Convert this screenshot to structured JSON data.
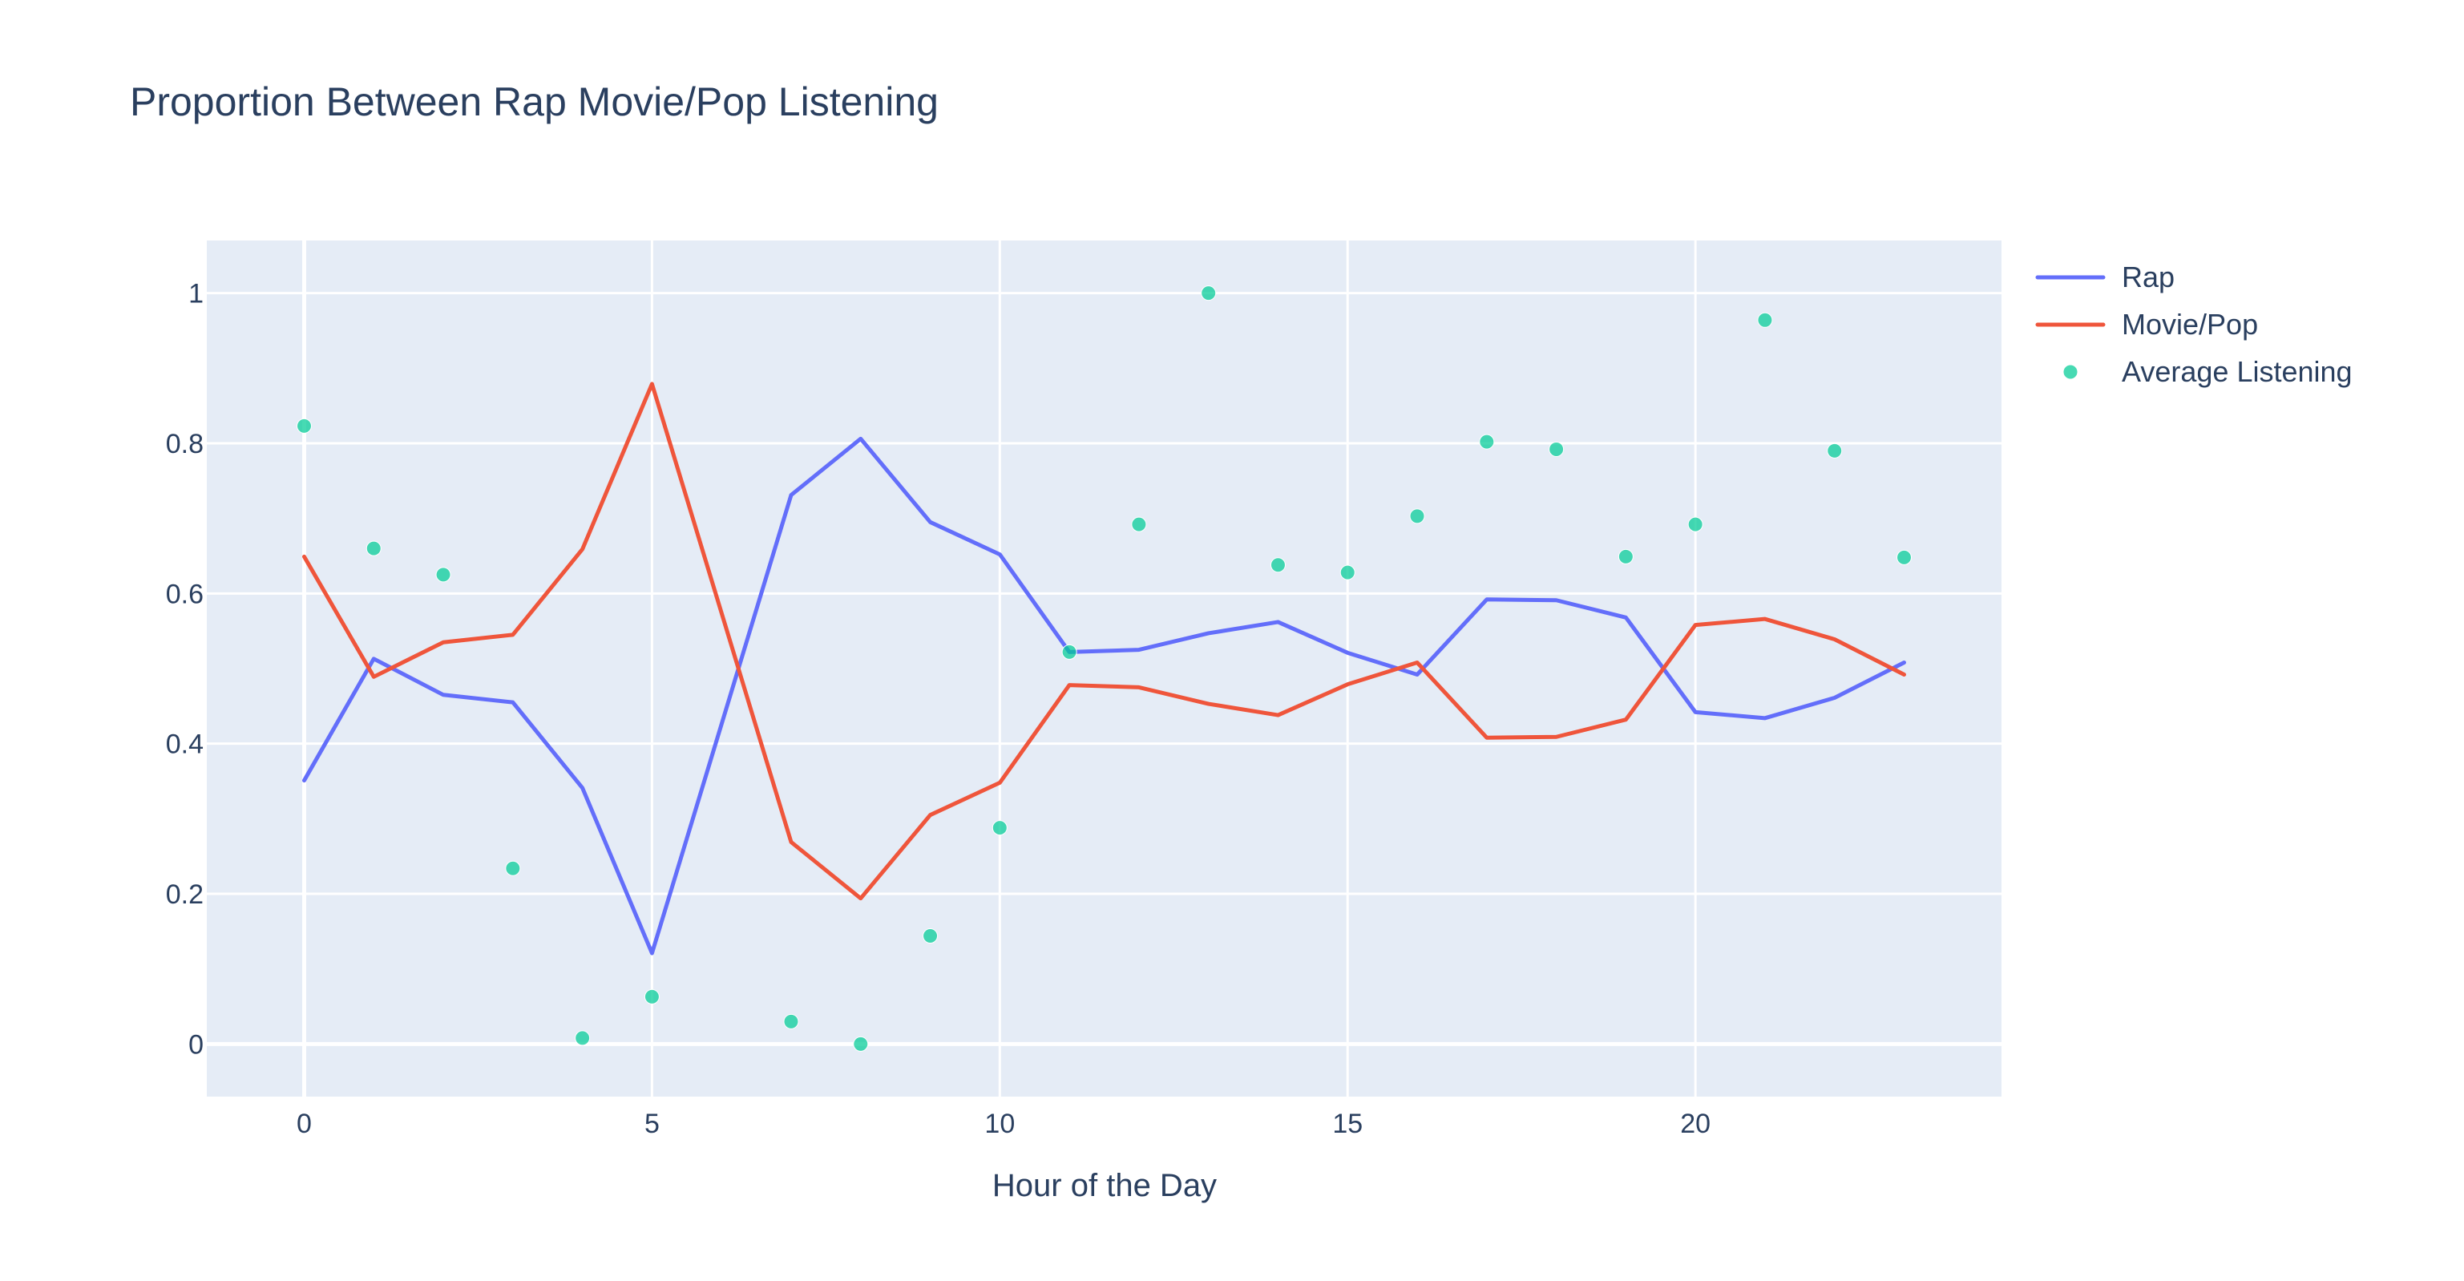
{
  "chart_data": {
    "type": "line",
    "title": "Proportion Between Rap Movie/Pop Listening",
    "xlabel": "Hour of the Day",
    "ylabel": "",
    "xlim": [
      -1.4,
      24.4
    ],
    "ylim": [
      -0.07,
      1.07
    ],
    "xticks": [
      0,
      5,
      10,
      15,
      20
    ],
    "yticks": [
      0,
      0.2,
      0.4,
      0.6,
      0.8,
      1
    ],
    "grid": true,
    "legend_position": "top-right, outside plot",
    "background_color": "#e5ecf6",
    "series": [
      {
        "name": "Rap",
        "mode": "lines",
        "color": "#636efa",
        "x": [
          0,
          1,
          2,
          3,
          4,
          5,
          7,
          8,
          9,
          10,
          11,
          12,
          13,
          14,
          15,
          16,
          17,
          18,
          19,
          20,
          21,
          22,
          23
        ],
        "values": [
          0.351,
          0.513,
          0.465,
          0.455,
          0.341,
          0.121,
          0.731,
          0.806,
          0.695,
          0.652,
          0.522,
          0.525,
          0.547,
          0.562,
          0.521,
          0.492,
          0.592,
          0.591,
          0.568,
          0.442,
          0.434,
          0.461,
          0.508
        ]
      },
      {
        "name": "Movie/Pop",
        "mode": "lines",
        "color": "#ef553b",
        "x": [
          0,
          1,
          2,
          3,
          4,
          5,
          7,
          8,
          9,
          10,
          11,
          12,
          13,
          14,
          15,
          16,
          17,
          18,
          19,
          20,
          21,
          22,
          23
        ],
        "values": [
          0.649,
          0.489,
          0.535,
          0.545,
          0.659,
          0.879,
          0.269,
          0.194,
          0.305,
          0.348,
          0.478,
          0.475,
          0.453,
          0.438,
          0.479,
          0.508,
          0.408,
          0.409,
          0.432,
          0.558,
          0.566,
          0.539,
          0.492
        ]
      },
      {
        "name": "Average Listening",
        "mode": "markers",
        "color": "#00cc96",
        "x": [
          0,
          1,
          2,
          3,
          4,
          5,
          7,
          8,
          9,
          10,
          11,
          12,
          13,
          14,
          15,
          16,
          17,
          18,
          19,
          20,
          21,
          22,
          23
        ],
        "values": [
          0.823,
          0.66,
          0.625,
          0.234,
          0.008,
          0.063,
          0.03,
          0.0,
          0.144,
          0.288,
          0.522,
          0.692,
          1.0,
          0.638,
          0.628,
          0.703,
          0.802,
          0.792,
          0.649,
          0.692,
          0.964,
          0.79,
          0.648
        ]
      }
    ]
  }
}
